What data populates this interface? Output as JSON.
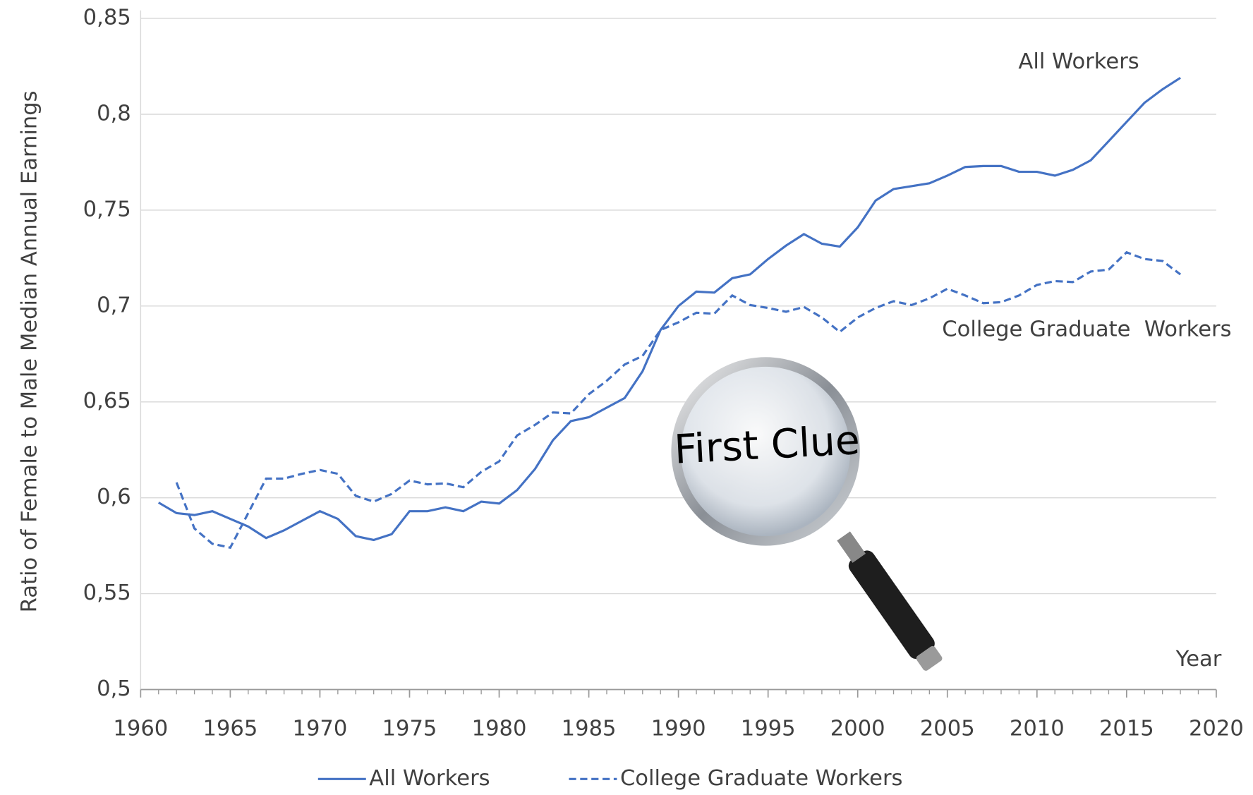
{
  "chart_data": {
    "type": "line",
    "y_label": "Ratio of Female to Male Median Annual Earnings",
    "annotations": [
      "All Workers",
      "College Graduate  Workers",
      "Year",
      "First Clue"
    ],
    "x": [
      1961,
      1962,
      1963,
      1964,
      1965,
      1966,
      1967,
      1968,
      1969,
      1970,
      1971,
      1972,
      1973,
      1974,
      1975,
      1976,
      1977,
      1978,
      1979,
      1980,
      1981,
      1982,
      1983,
      1984,
      1985,
      1986,
      1987,
      1988,
      1989,
      1990,
      1991,
      1992,
      1993,
      1994,
      1995,
      1996,
      1997,
      1998,
      1999,
      2000,
      2001,
      2002,
      2003,
      2004,
      2005,
      2006,
      2007,
      2008,
      2009,
      2010,
      2011,
      2012,
      2013,
      2014,
      2015,
      2016,
      2017,
      2018
    ],
    "series": [
      {
        "name": "All Workers",
        "color": "#4472c4",
        "dash": "solid",
        "values": [
          0.5975,
          0.592,
          0.591,
          0.593,
          0.589,
          0.585,
          0.579,
          0.583,
          0.588,
          0.593,
          0.589,
          0.58,
          0.578,
          0.581,
          0.593,
          0.593,
          0.595,
          0.593,
          0.598,
          0.597,
          0.604,
          0.615,
          0.63,
          0.64,
          0.642,
          0.647,
          0.652,
          0.666,
          0.6875,
          0.7,
          0.7075,
          0.707,
          0.7145,
          0.7165,
          0.7245,
          0.7315,
          0.7375,
          0.7325,
          0.731,
          0.741,
          0.755,
          0.761,
          0.7625,
          0.764,
          0.768,
          0.7725,
          0.773,
          0.773,
          0.77,
          0.77,
          0.768,
          0.771,
          0.776,
          0.786,
          0.796,
          0.806,
          0.813,
          0.819
        ]
      },
      {
        "name": "College Graduate Workers",
        "color": "#4472c4",
        "dash": "dashed",
        "values": [
          null,
          0.608,
          0.584,
          0.576,
          0.574,
          0.592,
          0.61,
          0.61,
          0.6125,
          0.6145,
          0.6125,
          0.601,
          0.598,
          0.602,
          0.609,
          0.607,
          0.6075,
          0.6055,
          0.6135,
          0.619,
          0.6325,
          0.638,
          0.6445,
          0.644,
          0.654,
          0.661,
          0.6695,
          0.674,
          0.6875,
          0.6915,
          0.6965,
          0.696,
          0.7055,
          0.7005,
          0.699,
          0.697,
          0.6995,
          0.694,
          0.6865,
          0.694,
          0.699,
          0.7025,
          0.7005,
          0.704,
          0.709,
          0.7055,
          0.7015,
          0.702,
          0.7055,
          0.711,
          0.713,
          0.7125,
          0.718,
          0.719,
          0.728,
          0.7245,
          0.7235,
          0.7165
        ]
      }
    ],
    "xlim": [
      1960,
      2020
    ],
    "xticks": [
      1960,
      1965,
      1970,
      1975,
      1980,
      1985,
      1990,
      1995,
      2000,
      2005,
      2010,
      2015,
      2020
    ],
    "ylim": [
      0.5,
      0.85
    ],
    "yticks": [
      {
        "value": 0.5,
        "label": "0,5"
      },
      {
        "value": 0.55,
        "label": "0,55"
      },
      {
        "value": 0.6,
        "label": "0,6"
      },
      {
        "value": 0.65,
        "label": "0,65"
      },
      {
        "value": 0.7,
        "label": "0,7"
      },
      {
        "value": 0.75,
        "label": "0,75"
      },
      {
        "value": 0.8,
        "label": "0,8"
      },
      {
        "value": 0.85,
        "label": "0,85"
      }
    ],
    "grid": true,
    "legend": "bottom"
  }
}
